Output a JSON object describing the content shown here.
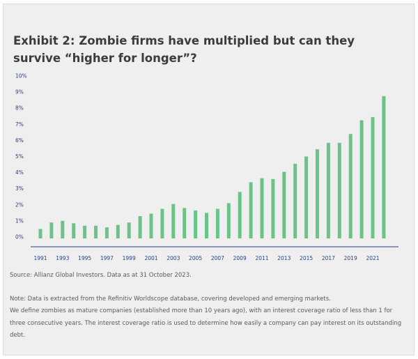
{
  "title": "Exhibit 2: Zombie firms have multiplied but can they survive “higher for longer”?",
  "source": "Source: Allianz Global Investors. Data as at 31 October 2023.",
  "notes": [
    "Note: Data is extracted from the Refinitiv Worldscope database, covering developed and emerging markets.",
    "We define zombies as mature companies (established more than 10 years ago), with an interest coverage ratio of less than 1 for three consecutive years. The interest coverage ratio is used to determine how easily a company can pay interest on its outstanding debt."
  ],
  "colors": {
    "bar": "#6cc38a",
    "axis": "#2a3a8f",
    "text": "#3c3c3c",
    "background": "#efefef"
  },
  "chart_data": {
    "type": "bar",
    "title": "",
    "xlabel": "",
    "ylabel": "",
    "grid": false,
    "ylim": [
      0,
      10
    ],
    "yticks": [
      "0%",
      "1%",
      "2%",
      "3%",
      "4%",
      "5%",
      "6%",
      "7%",
      "8%",
      "9%",
      "10%"
    ],
    "categories": [
      1991,
      1992,
      1993,
      1994,
      1995,
      1996,
      1997,
      1998,
      1999,
      2000,
      2001,
      2002,
      2003,
      2004,
      2005,
      2006,
      2007,
      2008,
      2009,
      2010,
      2011,
      2012,
      2013,
      2014,
      2015,
      2016,
      2017,
      2018,
      2019,
      2020,
      2021,
      2022
    ],
    "xtick_labels": [
      "1991",
      "1993",
      "1995",
      "1997",
      "1999",
      "2001",
      "2003",
      "2005",
      "2007",
      "2009",
      "2011",
      "2013",
      "2015",
      "2017",
      "2019",
      "2021"
    ],
    "values": [
      0.5,
      0.9,
      1.0,
      0.85,
      0.7,
      0.7,
      0.6,
      0.75,
      0.9,
      1.3,
      1.45,
      1.75,
      2.05,
      1.8,
      1.65,
      1.5,
      1.75,
      2.1,
      2.8,
      3.4,
      3.65,
      3.6,
      4.05,
      4.55,
      5.0,
      5.45,
      5.85,
      5.85,
      6.4,
      7.25,
      7.45,
      8.75
    ]
  }
}
